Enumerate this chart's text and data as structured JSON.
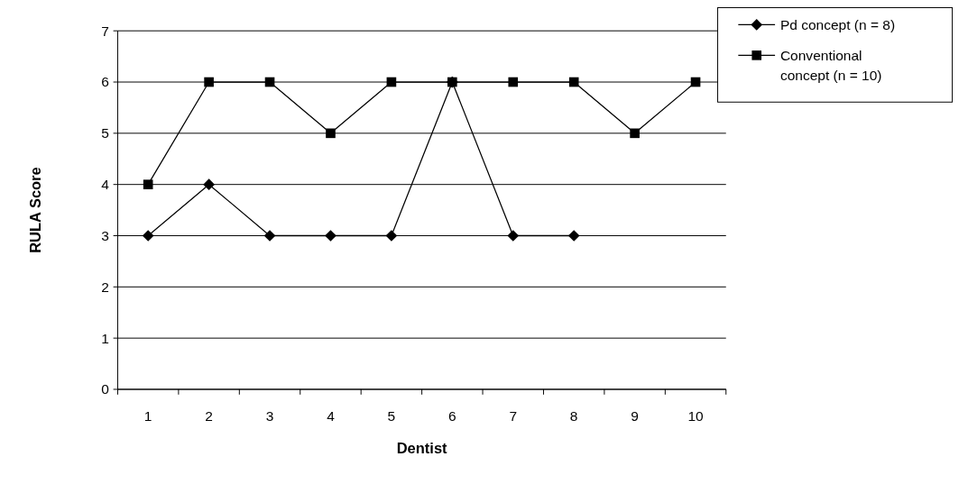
{
  "chart_data": {
    "type": "line",
    "xlabel": "Dentist",
    "ylabel": "RULA Score",
    "categories": [
      "1",
      "2",
      "3",
      "4",
      "5",
      "6",
      "7",
      "8",
      "9",
      "10"
    ],
    "series": [
      {
        "name": "Pd concept (n = 8)",
        "color": "#000000",
        "marker": "diamond",
        "values": [
          3,
          4,
          3,
          3,
          3,
          6,
          3,
          3,
          null,
          null
        ]
      },
      {
        "name": "Conventional concept (n = 10)",
        "color": "#000000",
        "marker": "square",
        "values": [
          4,
          6,
          6,
          5,
          6,
          6,
          6,
          6,
          5,
          6
        ]
      }
    ],
    "ylim": [
      0,
      7
    ],
    "yticks": [
      0,
      1,
      2,
      3,
      4,
      5,
      6,
      7
    ],
    "grid": "y",
    "legend": "top right",
    "line_style": "solid"
  }
}
